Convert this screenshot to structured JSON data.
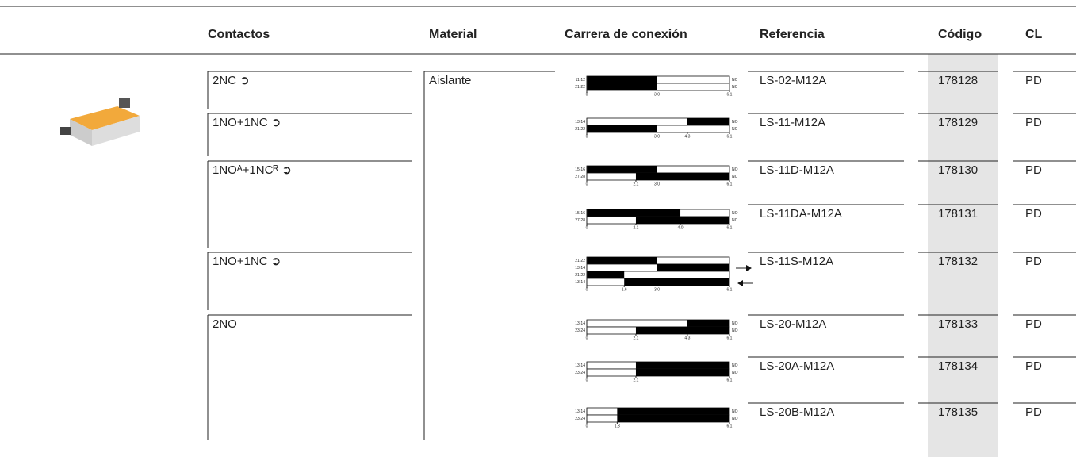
{
  "header": {
    "columns": [
      "Contactos",
      "Material",
      "Carrera de conexión",
      "Referencia",
      "Código",
      "CL"
    ]
  },
  "material": "Aislante",
  "products": [
    {
      "contacts": "2NC ➲",
      "diagram": {
        "rows": [
          {
            "terminals": "11-12",
            "state": "NC",
            "black": [
              0,
              3
            ]
          },
          {
            "terminals": "21-22",
            "state": "NC",
            "black": [
              0,
              3
            ]
          }
        ],
        "ticks": [
          0,
          {
            "value": 3,
            "label": "3.0"
          },
          6.1
        ]
      },
      "reference": "LS-02-M12A",
      "code": "178128",
      "cl": "PD"
    },
    {
      "contacts": "1NO+1NC ➲",
      "diagram": {
        "rows": [
          {
            "terminals": "13-14",
            "state": "NO",
            "black": [
              4.3,
              6.1
            ]
          },
          {
            "terminals": "21-22",
            "state": "NC",
            "black": [
              0,
              3
            ]
          }
        ],
        "ticks": [
          0,
          {
            "value": 3,
            "label": "3.0"
          },
          4.3,
          6.1
        ]
      },
      "reference": "LS-11-M12A",
      "code": "178129",
      "cl": "PD"
    },
    {
      "contacts": "1NOᴬ+1NCᴿ ➲",
      "diagram": {
        "rows": [
          {
            "terminals": "15-16",
            "state": "NO",
            "black": [
              0,
              3
            ]
          },
          {
            "terminals": "27-28",
            "state": "NC",
            "black": [
              2.1,
              6.1
            ]
          }
        ],
        "ticks": [
          0,
          2.1,
          {
            "value": 3,
            "label": "3.0"
          },
          6.1
        ]
      },
      "reference": "LS-11D-M12A",
      "code": "178130",
      "cl": "PD"
    },
    {
      "contacts": null,
      "diagram": {
        "rows": [
          {
            "terminals": "15-16",
            "state": "NO",
            "black": [
              0,
              4
            ]
          },
          {
            "terminals": "27-28",
            "state": "NC",
            "black": [
              2.1,
              6.1
            ]
          }
        ],
        "ticks": [
          0,
          2.1,
          {
            "value": 4,
            "label": "4.0"
          },
          6.1
        ]
      },
      "reference": "LS-11DA-M12A",
      "code": "178131",
      "cl": "PD"
    },
    {
      "contacts": "1NO+1NC ➲",
      "diagram": {
        "rows": [
          {
            "terminals": "21-22",
            "state": null,
            "black": [
              0,
              3
            ]
          },
          {
            "terminals": "13-14",
            "state": null,
            "black": [
              3,
              6.1
            ]
          },
          {
            "terminals": "21-22",
            "state": null,
            "black": [
              0,
              1.6
            ]
          },
          {
            "terminals": "13-14",
            "state": null,
            "black": [
              1.6,
              6.1
            ]
          }
        ],
        "ticks": [
          0,
          1.6,
          {
            "value": 3,
            "label": "3.0"
          },
          6.1
        ]
      },
      "reference": "LS-11S-M12A",
      "code": "178132",
      "cl": "PD"
    },
    {
      "contacts": "2NO",
      "diagram": {
        "rows": [
          {
            "terminals": "13-14",
            "state": "NO",
            "black": [
              4.3,
              6.1
            ]
          },
          {
            "terminals": "23-24",
            "state": "NO",
            "black": [
              2.1,
              6.1
            ]
          }
        ],
        "ticks": [
          0,
          2.1,
          4.3,
          6.1
        ]
      },
      "reference": "LS-20-M12A",
      "code": "178133",
      "cl": "PD"
    },
    {
      "contacts": null,
      "diagram": {
        "rows": [
          {
            "terminals": "13-14",
            "state": "NO",
            "black": [
              2.1,
              6.1
            ]
          },
          {
            "terminals": "23-24",
            "state": "NO",
            "black": [
              2.1,
              6.1
            ]
          }
        ],
        "ticks": [
          0,
          2.1,
          6.1
        ]
      },
      "reference": "LS-20A-M12A",
      "code": "178134",
      "cl": "PD"
    },
    {
      "contacts": null,
      "diagram": {
        "rows": [
          {
            "terminals": "13-14",
            "state": "NO",
            "black": [
              1.3,
              6.1
            ]
          },
          {
            "terminals": "23-24",
            "state": "NO",
            "black": [
              1.3,
              6.1
            ]
          }
        ],
        "ticks": [
          0,
          1.3,
          6.1
        ]
      },
      "reference": "LS-20B-M12A",
      "code": "178135",
      "cl": "PD"
    }
  ]
}
